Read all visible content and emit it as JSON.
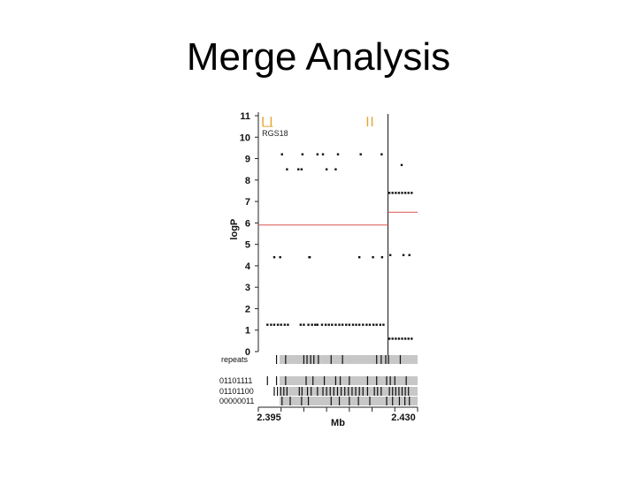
{
  "slide": {
    "title": "Merge Analysis"
  },
  "chart_data": {
    "type": "scatter",
    "title": "",
    "xlabel": "Mb",
    "ylabel": "logP",
    "x_tick_labels": [
      "2.395",
      "2.430"
    ],
    "xlim": [
      2.395,
      2.43
    ],
    "ylim": [
      0,
      11
    ],
    "y_ticks": [
      0,
      1,
      2,
      3,
      4,
      5,
      6,
      7,
      8,
      9,
      10,
      11
    ],
    "gene_label": "RGS18",
    "threshold_line": {
      "color": "#d9534f",
      "segments": [
        {
          "x_start": 2.395,
          "x_end": 2.4235,
          "y": 5.9
        },
        {
          "x_start": 2.4235,
          "x_end": 2.43,
          "y": 6.5
        }
      ]
    },
    "divider_x": 2.4235,
    "points": [
      {
        "x": 2.4002,
        "y": 9.2
      },
      {
        "x": 2.4047,
        "y": 9.2
      },
      {
        "x": 2.408,
        "y": 9.2
      },
      {
        "x": 2.4092,
        "y": 9.2
      },
      {
        "x": 2.4125,
        "y": 9.2
      },
      {
        "x": 2.4175,
        "y": 9.2
      },
      {
        "x": 2.4221,
        "y": 9.2
      },
      {
        "x": 2.4265,
        "y": 8.7
      },
      {
        "x": 2.4013,
        "y": 8.5
      },
      {
        "x": 2.4038,
        "y": 8.5
      },
      {
        "x": 2.4045,
        "y": 8.5
      },
      {
        "x": 2.41,
        "y": 8.5
      },
      {
        "x": 2.412,
        "y": 8.5
      },
      {
        "x": 2.4238,
        "y": 7.4
      },
      {
        "x": 2.4245,
        "y": 7.4
      },
      {
        "x": 2.4252,
        "y": 7.4
      },
      {
        "x": 2.4259,
        "y": 7.4
      },
      {
        "x": 2.4266,
        "y": 7.4
      },
      {
        "x": 2.4273,
        "y": 7.4
      },
      {
        "x": 2.428,
        "y": 7.4
      },
      {
        "x": 2.4287,
        "y": 7.4
      },
      {
        "x": 2.3985,
        "y": 4.4
      },
      {
        "x": 2.3998,
        "y": 4.4
      },
      {
        "x": 2.4062,
        "y": 4.4
      },
      {
        "x": 2.4063,
        "y": 4.4
      },
      {
        "x": 2.4172,
        "y": 4.4
      },
      {
        "x": 2.4202,
        "y": 4.4
      },
      {
        "x": 2.4222,
        "y": 4.4
      },
      {
        "x": 2.424,
        "y": 4.5
      },
      {
        "x": 2.4269,
        "y": 4.5
      },
      {
        "x": 2.4282,
        "y": 4.5
      },
      {
        "x": 2.397,
        "y": 1.25
      },
      {
        "x": 2.3978,
        "y": 1.25
      },
      {
        "x": 2.3985,
        "y": 1.25
      },
      {
        "x": 2.3993,
        "y": 1.25
      },
      {
        "x": 2.4,
        "y": 1.25
      },
      {
        "x": 2.4008,
        "y": 1.25
      },
      {
        "x": 2.4015,
        "y": 1.25
      },
      {
        "x": 2.4043,
        "y": 1.25
      },
      {
        "x": 2.405,
        "y": 1.25
      },
      {
        "x": 2.406,
        "y": 1.25
      },
      {
        "x": 2.4068,
        "y": 1.25
      },
      {
        "x": 2.4075,
        "y": 1.25
      },
      {
        "x": 2.408,
        "y": 1.25
      },
      {
        "x": 2.409,
        "y": 1.25
      },
      {
        "x": 2.4098,
        "y": 1.25
      },
      {
        "x": 2.4105,
        "y": 1.25
      },
      {
        "x": 2.4112,
        "y": 1.25
      },
      {
        "x": 2.412,
        "y": 1.25
      },
      {
        "x": 2.4128,
        "y": 1.25
      },
      {
        "x": 2.4135,
        "y": 1.25
      },
      {
        "x": 2.4143,
        "y": 1.25
      },
      {
        "x": 2.415,
        "y": 1.25
      },
      {
        "x": 2.4158,
        "y": 1.25
      },
      {
        "x": 2.4165,
        "y": 1.25
      },
      {
        "x": 2.4172,
        "y": 1.25
      },
      {
        "x": 2.418,
        "y": 1.25
      },
      {
        "x": 2.4188,
        "y": 1.25
      },
      {
        "x": 2.4195,
        "y": 1.25
      },
      {
        "x": 2.4203,
        "y": 1.25
      },
      {
        "x": 2.421,
        "y": 1.25
      },
      {
        "x": 2.4218,
        "y": 1.25
      },
      {
        "x": 2.4225,
        "y": 1.25
      },
      {
        "x": 2.4238,
        "y": 0.6
      },
      {
        "x": 2.4245,
        "y": 0.6
      },
      {
        "x": 2.4252,
        "y": 0.6
      },
      {
        "x": 2.4259,
        "y": 0.6
      },
      {
        "x": 2.4266,
        "y": 0.6
      },
      {
        "x": 2.4273,
        "y": 0.6
      },
      {
        "x": 2.428,
        "y": 0.6
      },
      {
        "x": 2.4287,
        "y": 0.6
      }
    ],
    "tracks": [
      {
        "label": "repeats",
        "positions": [
          2.399,
          2.401,
          2.405,
          2.4057,
          2.4065,
          2.4072,
          2.4082,
          2.411,
          2.4135,
          2.421,
          2.422,
          2.423,
          2.4236,
          2.4262
        ]
      },
      {
        "label": "01101111",
        "positions": [
          2.397,
          2.399,
          2.401,
          2.4055,
          2.407,
          2.4095,
          2.412,
          2.413,
          2.415,
          2.419,
          2.421,
          2.4232,
          2.424,
          2.425,
          2.4275
        ]
      },
      {
        "label": "01101100",
        "positions": [
          2.3985,
          2.3992,
          2.3999,
          2.4006,
          2.4013,
          2.404,
          2.4046,
          2.4058,
          2.4066,
          2.408,
          2.4092,
          2.41,
          2.4108,
          2.4116,
          2.4124,
          2.4132,
          2.414,
          2.4148,
          2.4156,
          2.4164,
          2.4172,
          2.418,
          2.419,
          2.4205,
          2.4212,
          2.422,
          2.4238,
          2.4245,
          2.4252,
          2.4259,
          2.4266,
          2.4273,
          2.428
        ]
      },
      {
        "label": "00000011",
        "positions": [
          2.4002,
          2.402,
          2.4045,
          2.406,
          2.411,
          2.4128,
          2.415,
          2.417,
          2.4195,
          2.4232,
          2.4245,
          2.426,
          2.4272,
          2.4282
        ]
      }
    ],
    "gene_markers": [
      2.396,
      2.3978,
      2.419,
      2.42
    ]
  }
}
